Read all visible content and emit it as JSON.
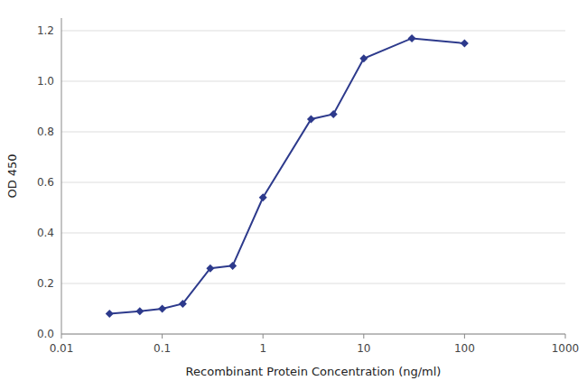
{
  "chart_data": {
    "type": "line",
    "x": [
      0.03,
      0.06,
      0.1,
      0.16,
      0.3,
      0.5,
      1.0,
      3.0,
      5.0,
      10.0,
      30.0,
      100.0
    ],
    "values": [
      0.08,
      0.09,
      0.1,
      0.12,
      0.26,
      0.27,
      0.54,
      0.85,
      0.87,
      1.09,
      1.17,
      1.15
    ],
    "color": "#2d3a8c",
    "marker": "diamond",
    "xlabel": "Recombinant Protein Concentration (ng/ml)",
    "ylabel": "OD 450",
    "log": "x",
    "xlim": [
      0.01,
      1000
    ],
    "ylim": [
      0.0,
      1.25
    ],
    "xticks": [
      0.01,
      0.1,
      1,
      10,
      100,
      1000
    ],
    "yticks": [
      {
        "value": 0.0,
        "label": "0.0"
      },
      0.2,
      0.4,
      0.6,
      0.8,
      {
        "value": 1.0,
        "label": "1.0"
      },
      1.2
    ],
    "grid": true
  }
}
